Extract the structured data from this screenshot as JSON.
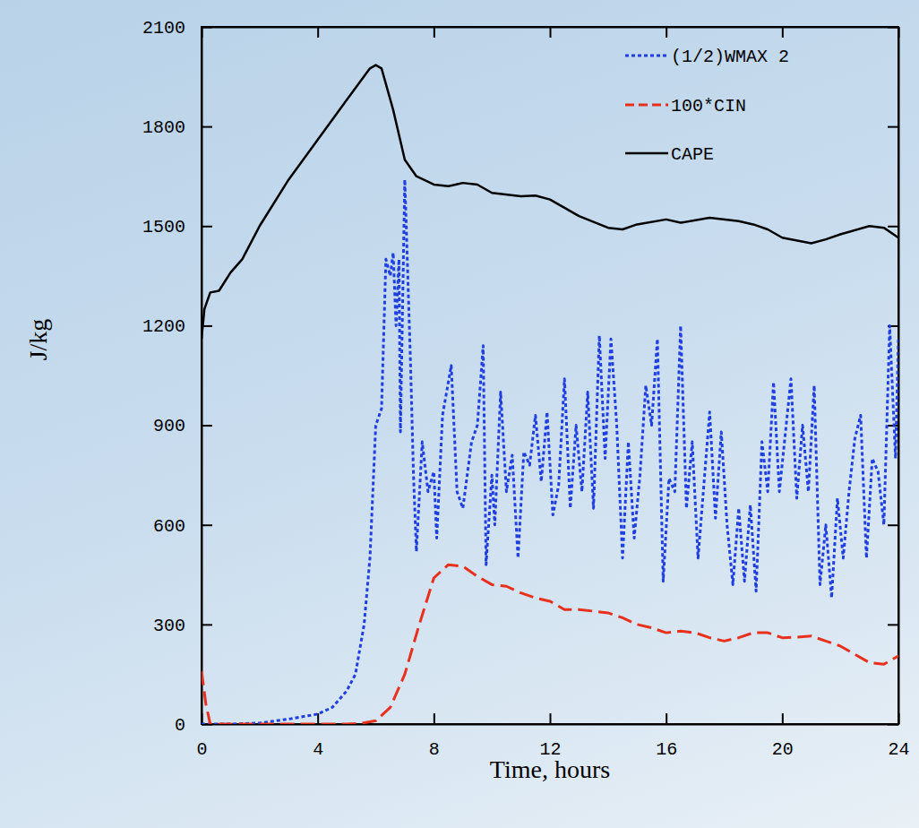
{
  "chart_data": {
    "type": "line",
    "x_label": "Time, hours",
    "y_label": "J/kg",
    "xlim": [
      0,
      24
    ],
    "xticks": [
      0,
      4,
      8,
      12,
      16,
      20,
      24
    ],
    "ylim": [
      0,
      2100
    ],
    "yticks": [
      0,
      300,
      600,
      900,
      1200,
      1500,
      1800,
      2100
    ],
    "legend": "upper right",
    "grid": false,
    "series": [
      {
        "name": "(1/2)WMAX 2",
        "color": "#1f3fe0",
        "line_style": "dotted",
        "x": [
          0,
          1,
          2,
          3,
          4,
          4.5,
          5,
          5.3,
          5.6,
          5.8,
          6,
          6.2,
          6.35,
          6.5,
          6.6,
          6.7,
          6.8,
          6.85,
          7,
          7.2,
          7.3,
          7.4,
          7.6,
          7.8,
          8,
          8.1,
          8.3,
          8.6,
          8.8,
          9,
          9.3,
          9.5,
          9.7,
          9.8,
          10,
          10.1,
          10.3,
          10.5,
          10.7,
          10.9,
          11.1,
          11.3,
          11.5,
          11.7,
          11.9,
          12.1,
          12.3,
          12.5,
          12.7,
          12.9,
          13.1,
          13.3,
          13.5,
          13.7,
          13.9,
          14.1,
          14.3,
          14.5,
          14.7,
          14.9,
          15.1,
          15.3,
          15.5,
          15.7,
          15.9,
          16.1,
          16.3,
          16.5,
          16.7,
          16.9,
          17.1,
          17.3,
          17.5,
          17.7,
          17.9,
          18.1,
          18.3,
          18.5,
          18.7,
          18.9,
          19.1,
          19.3,
          19.5,
          19.7,
          19.9,
          20.1,
          20.3,
          20.5,
          20.7,
          20.9,
          21.1,
          21.3,
          21.5,
          21.7,
          21.9,
          22.1,
          22.3,
          22.5,
          22.7,
          22.9,
          23.1,
          23.3,
          23.5,
          23.7,
          23.9,
          24
        ],
        "values": [
          0,
          0,
          3,
          15,
          30,
          50,
          100,
          150,
          300,
          500,
          900,
          950,
          1400,
          1350,
          1420,
          1200,
          1400,
          880,
          1640,
          1080,
          750,
          520,
          850,
          700,
          760,
          560,
          930,
          1080,
          700,
          650,
          850,
          900,
          1140,
          480,
          750,
          600,
          1000,
          700,
          810,
          500,
          820,
          780,
          930,
          730,
          940,
          630,
          720,
          1040,
          650,
          900,
          700,
          1000,
          650,
          1170,
          800,
          1160,
          900,
          500,
          850,
          560,
          750,
          1020,
          900,
          1160,
          430,
          740,
          700,
          1200,
          650,
          850,
          500,
          720,
          940,
          620,
          880,
          600,
          420,
          650,
          430,
          660,
          400,
          850,
          700,
          1030,
          700,
          870,
          1040,
          680,
          900,
          700,
          1020,
          420,
          600,
          380,
          680,
          500,
          700,
          860,
          930,
          500,
          800,
          760,
          600,
          1200,
          800,
          1160
        ]
      },
      {
        "name": "100*CIN",
        "color": "#e8301c",
        "line_style": "dashed",
        "x": [
          0,
          0.15,
          0.3,
          1,
          5,
          5.5,
          6,
          6.5,
          7,
          7.5,
          8,
          8.5,
          9,
          9.5,
          10,
          10.5,
          11,
          11.5,
          12,
          12.5,
          13,
          13.5,
          14,
          14.5,
          15,
          15.5,
          16,
          16.5,
          17,
          17.5,
          18,
          18.5,
          19,
          19.5,
          20,
          20.5,
          21,
          21.5,
          22,
          22.5,
          23,
          23.5,
          24
        ],
        "values": [
          160,
          60,
          0,
          0,
          0,
          2,
          10,
          50,
          150,
          300,
          440,
          480,
          475,
          445,
          420,
          415,
          395,
          380,
          370,
          345,
          345,
          340,
          335,
          320,
          300,
          290,
          275,
          280,
          275,
          260,
          250,
          260,
          275,
          275,
          260,
          262,
          265,
          250,
          235,
          210,
          185,
          180,
          205
        ]
      },
      {
        "name": "CAPE",
        "color": "#000000",
        "line_style": "solid",
        "x": [
          0,
          0.1,
          0.3,
          0.6,
          1,
          1.4,
          2,
          3,
          4,
          5,
          5.8,
          6,
          6.2,
          6.6,
          7,
          7.4,
          8,
          8.5,
          9,
          9.5,
          10,
          11,
          11.5,
          12,
          13,
          14,
          14.5,
          15,
          16,
          16.5,
          17.5,
          18.5,
          19,
          19.5,
          20,
          21,
          21.5,
          22,
          23,
          23.5,
          24
        ],
        "values": [
          1160,
          1250,
          1300,
          1305,
          1360,
          1400,
          1500,
          1640,
          1760,
          1880,
          1975,
          1985,
          1975,
          1850,
          1700,
          1650,
          1625,
          1620,
          1630,
          1625,
          1600,
          1590,
          1592,
          1580,
          1530,
          1495,
          1490,
          1505,
          1520,
          1510,
          1525,
          1515,
          1505,
          1490,
          1465,
          1448,
          1460,
          1475,
          1500,
          1495,
          1465
        ]
      }
    ]
  }
}
